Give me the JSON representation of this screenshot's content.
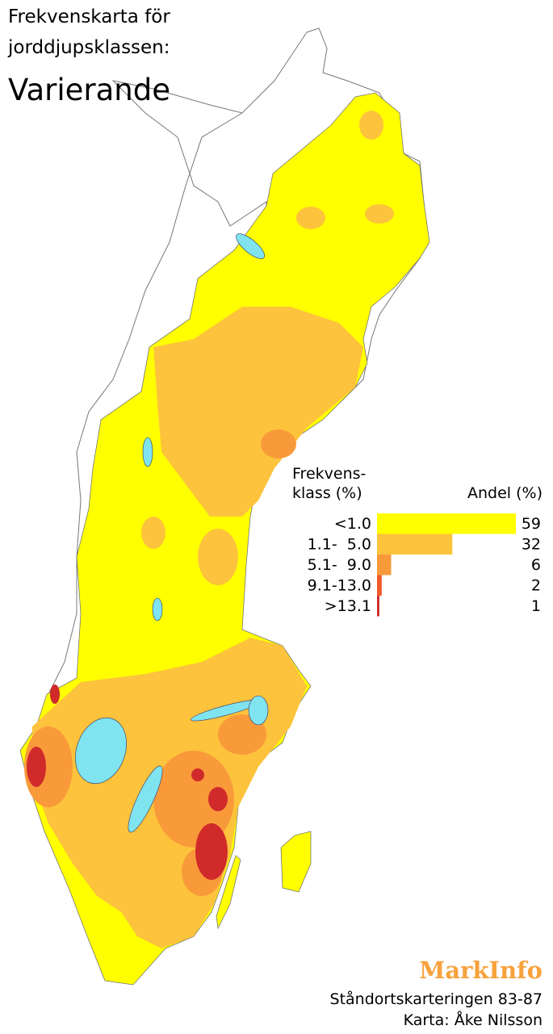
{
  "title": [
    "Frekvenskarta för",
    "jorddjupsklassen:"
  ],
  "subtitle": "Varierande",
  "legend": {
    "class_header": [
      "Frekvens-",
      "klass (%)"
    ],
    "share_header": "Andel (%)",
    "classes": [
      {
        "label": "<1.0",
        "share": 59,
        "color": "#ffff00"
      },
      {
        "label": "1.1-  5.0",
        "share": 32,
        "color": "#fdc33c"
      },
      {
        "label": "5.1-  9.0",
        "share": 6,
        "color": "#f99a3a"
      },
      {
        "label": "9.1-13.0",
        "share": 2,
        "color": "#ef5a2a"
      },
      {
        "label": ">13.1",
        "share": 1,
        "color": "#d02a2a"
      }
    ]
  },
  "footer": {
    "brand": "MarkInfo",
    "source": "Ståndortskarteringen 83-87",
    "credit": "Karta: Åke Nilsson"
  }
}
